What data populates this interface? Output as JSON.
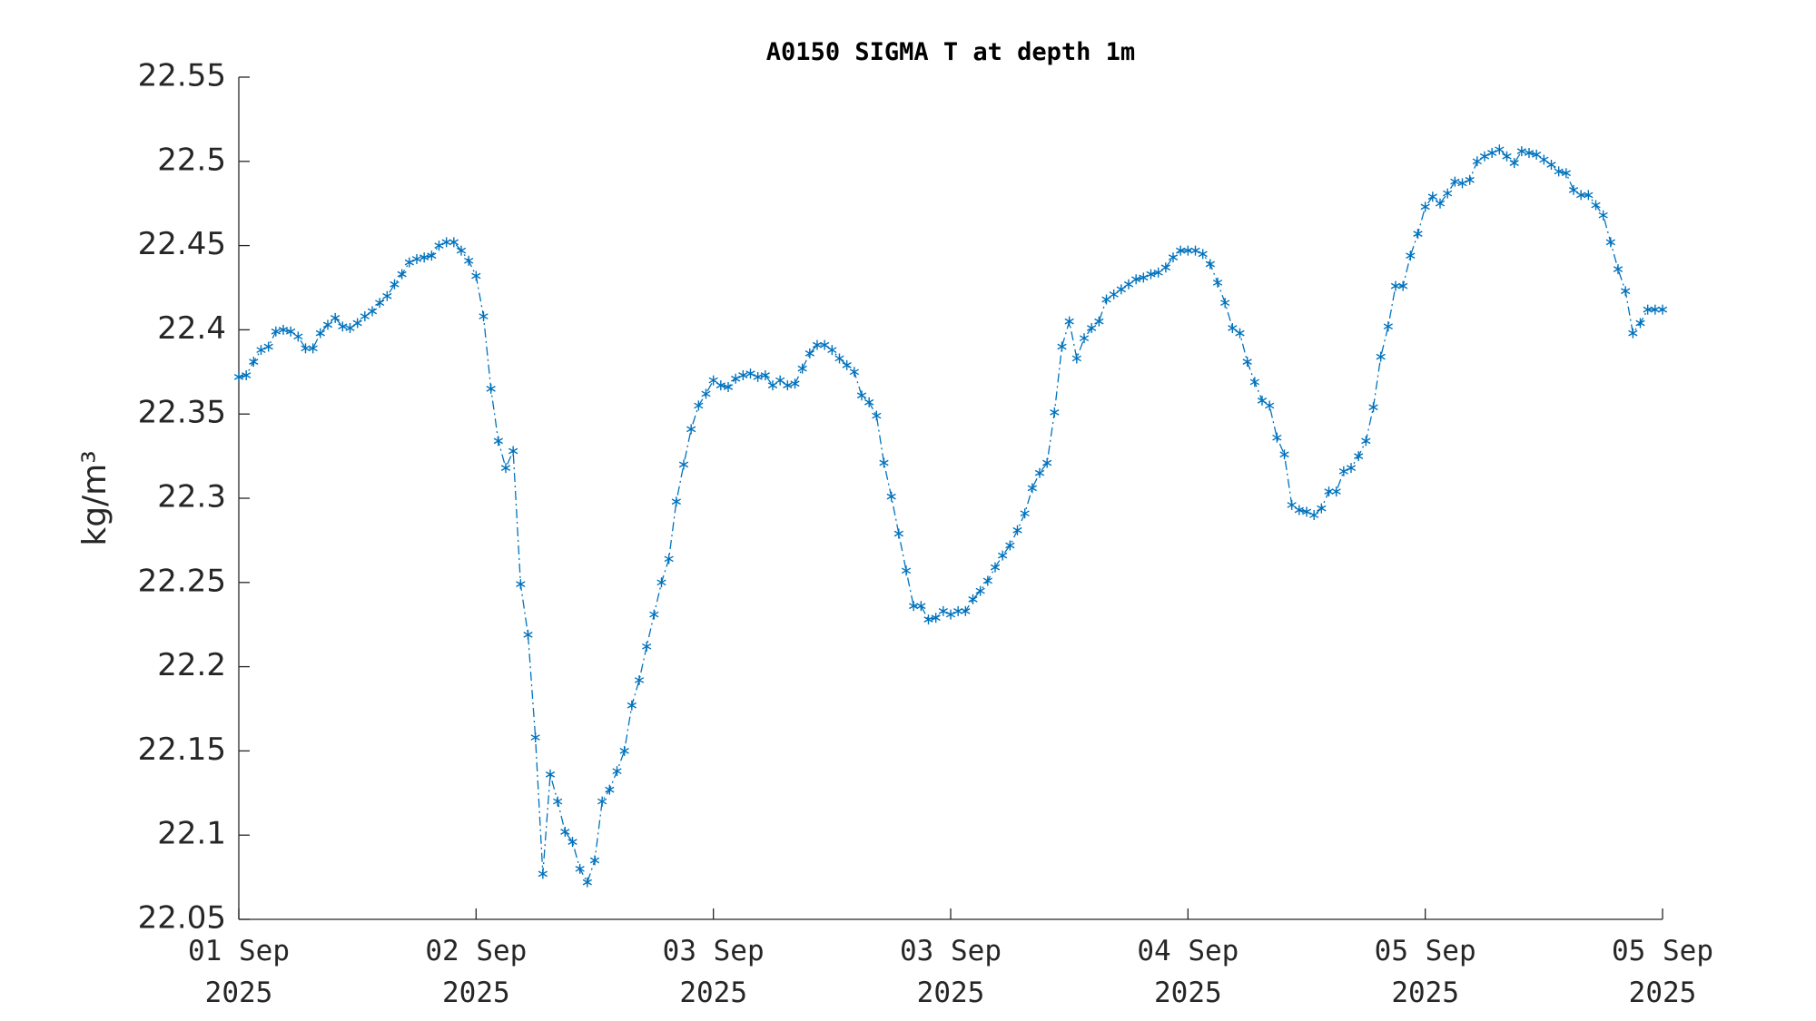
{
  "chart_data": {
    "type": "line",
    "title": "A0150 SIGMA T at depth 1m",
    "y_label": "kg/m³",
    "x": [
      0,
      0.5,
      1,
      1.5,
      2,
      2.5,
      3,
      3.5,
      4,
      4.5,
      5,
      5.5,
      6,
      6.5,
      7,
      7.5,
      8,
      8.5,
      9,
      9.5,
      10,
      10.5,
      11,
      11.5,
      12,
      12.5,
      13,
      13.5,
      14,
      14.5,
      15,
      15.5,
      16,
      16.5,
      17,
      17.5,
      18,
      18.5,
      19,
      19.5,
      20,
      20.5,
      21,
      21.5,
      22,
      22.5,
      23,
      23.5,
      24,
      24.5,
      25,
      25.5,
      26,
      26.5,
      27,
      27.5,
      28,
      28.5,
      29,
      29.5,
      30,
      30.5,
      31,
      31.5,
      32,
      32.5,
      33,
      33.5,
      34,
      34.5,
      35,
      35.5,
      36,
      36.5,
      37,
      37.5,
      38,
      38.5,
      39,
      39.5,
      40,
      40.5,
      41,
      41.5,
      42,
      42.5,
      43,
      43.5,
      44,
      44.5,
      45,
      45.5,
      46,
      46.5,
      47,
      47.5,
      48,
      48.5,
      49,
      49.5,
      50,
      50.5,
      51,
      51.5,
      52,
      52.5,
      53,
      53.5,
      54,
      54.5,
      55,
      55.5,
      56,
      56.5,
      57,
      57.5,
      58,
      58.5,
      59,
      59.5,
      60,
      60.5,
      61,
      61.5,
      62,
      62.5,
      63,
      63.5,
      64,
      64.5,
      65,
      65.5,
      66,
      66.5,
      67,
      67.5,
      68,
      68.5,
      69,
      69.5,
      70,
      70.5,
      71,
      71.5,
      72,
      72.5,
      73,
      73.5,
      74,
      74.5,
      75,
      75.5,
      76,
      76.5,
      77,
      77.5,
      78,
      78.5,
      79,
      79.5,
      80,
      80.5,
      81,
      81.5,
      82,
      82.5,
      83,
      83.5,
      84,
      84.5,
      85,
      85.5,
      86,
      86.5,
      87,
      87.5,
      88,
      88.5,
      89,
      89.5,
      90,
      90.5,
      91,
      91.5,
      92,
      92.5,
      93,
      93.5,
      94,
      94.5,
      95,
      95.5,
      96
    ],
    "series": [
      {
        "color": "#0072bd",
        "values": [
          22.372,
          22.373,
          22.381,
          22.388,
          22.39,
          22.399,
          22.4,
          22.399,
          22.396,
          22.389,
          22.389,
          22.398,
          22.403,
          22.407,
          22.402,
          22.401,
          22.404,
          22.408,
          22.411,
          22.416,
          22.42,
          22.427,
          22.433,
          22.44,
          22.442,
          22.443,
          22.444,
          22.45,
          22.452,
          22.452,
          22.447,
          22.441,
          22.432,
          22.408,
          22.365,
          22.334,
          22.318,
          22.328,
          22.249,
          22.219,
          22.158,
          22.077,
          22.136,
          22.12,
          22.102,
          22.096,
          22.08,
          22.072,
          22.085,
          22.12,
          22.127,
          22.138,
          22.15,
          22.177,
          22.192,
          22.212,
          22.231,
          22.25,
          22.264,
          22.298,
          22.32,
          22.341,
          22.355,
          22.362,
          22.37,
          22.367,
          22.366,
          22.371,
          22.373,
          22.374,
          22.372,
          22.373,
          22.367,
          22.37,
          22.367,
          22.368,
          22.377,
          22.386,
          22.391,
          22.391,
          22.388,
          22.383,
          22.379,
          22.375,
          22.361,
          22.357,
          22.349,
          22.321,
          22.301,
          22.279,
          22.257,
          22.236,
          22.236,
          22.228,
          22.229,
          22.233,
          22.231,
          22.233,
          22.233,
          22.24,
          22.245,
          22.251,
          22.259,
          22.266,
          22.272,
          22.281,
          22.291,
          22.306,
          22.315,
          22.321,
          22.351,
          22.39,
          22.405,
          22.383,
          22.395,
          22.401,
          22.405,
          22.418,
          22.421,
          22.424,
          22.427,
          22.43,
          22.431,
          22.433,
          22.434,
          22.437,
          22.443,
          22.447,
          22.447,
          22.447,
          22.445,
          22.439,
          22.428,
          22.416,
          22.401,
          22.398,
          22.381,
          22.369,
          22.358,
          22.355,
          22.336,
          22.326,
          22.296,
          22.293,
          22.292,
          22.29,
          22.294,
          22.304,
          22.304,
          22.316,
          22.318,
          22.325,
          22.334,
          22.354,
          22.384,
          22.402,
          22.426,
          22.426,
          22.444,
          22.457,
          22.473,
          22.479,
          22.475,
          22.481,
          22.488,
          22.487,
          22.489,
          22.5,
          22.503,
          22.505,
          22.507,
          22.503,
          22.499,
          22.506,
          22.505,
          22.504,
          22.501,
          22.498,
          22.494,
          22.493,
          22.483,
          22.48,
          22.48,
          22.474,
          22.468,
          22.452,
          22.436,
          22.423,
          22.398,
          22.404,
          22.412,
          22.412,
          22.412
        ]
      }
    ],
    "xlim": [
      0,
      96
    ],
    "xticks": [
      {
        "value": 0,
        "label": "01 Sep\n2025"
      },
      {
        "value": 16,
        "label": "02 Sep\n2025"
      },
      {
        "value": 32,
        "label": "03 Sep\n2025"
      },
      {
        "value": 48,
        "label": "03 Sep\n2025"
      },
      {
        "value": 64,
        "label": "04 Sep\n2025"
      },
      {
        "value": 80,
        "label": "05 Sep\n2025"
      },
      {
        "value": 96,
        "label": "05 Sep\n2025"
      }
    ],
    "ylim": [
      22.05,
      22.55
    ],
    "yticks": [
      22.05,
      22.1,
      22.15,
      22.2,
      22.25,
      22.3,
      22.35,
      22.4,
      22.45,
      22.5,
      22.55
    ],
    "grid": false
  }
}
